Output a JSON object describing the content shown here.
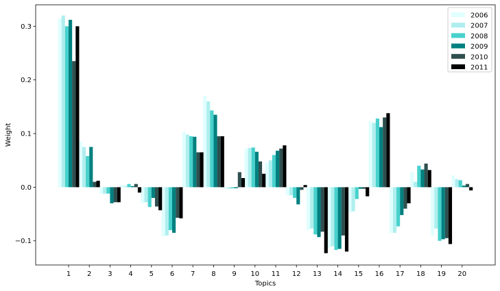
{
  "chart_data": {
    "type": "bar",
    "title": "",
    "xlabel": "Topics",
    "ylabel": "Weight",
    "categories": [
      "1",
      "2",
      "3",
      "4",
      "5",
      "6",
      "7",
      "8",
      "9",
      "10",
      "11",
      "12",
      "13",
      "14",
      "15",
      "16",
      "17",
      "18",
      "19",
      "20"
    ],
    "ylim": [
      -0.145,
      0.34
    ],
    "yticks": [
      -0.1,
      0.0,
      0.1,
      0.2,
      0.3
    ],
    "ytick_labels": [
      "−0.1",
      "0.0",
      "0.1",
      "0.2",
      "0.3"
    ],
    "grid": false,
    "legend": "top-right",
    "series": [
      {
        "name": "2006",
        "color": "#e0ffff",
        "values": [
          0.315,
          0.085,
          -0.012,
          0.004,
          -0.03,
          -0.092,
          0.103,
          0.17,
          -0.003,
          0.072,
          0.045,
          -0.015,
          -0.08,
          -0.113,
          -0.047,
          0.123,
          -0.085,
          0.028,
          -0.09,
          0.022
        ]
      },
      {
        "name": "2007",
        "color": "#afeeee",
        "values": [
          0.32,
          0.075,
          -0.012,
          0.002,
          -0.028,
          -0.09,
          0.098,
          0.16,
          -0.003,
          0.073,
          0.05,
          -0.015,
          -0.077,
          -0.11,
          -0.045,
          0.12,
          -0.085,
          0.01,
          -0.077,
          0.015
        ]
      },
      {
        "name": "2008",
        "color": "#48d1cc",
        "values": [
          0.3,
          0.058,
          -0.012,
          0.006,
          -0.037,
          -0.08,
          0.095,
          0.143,
          -0.002,
          0.074,
          0.06,
          -0.02,
          -0.088,
          -0.117,
          -0.022,
          0.128,
          -0.073,
          0.04,
          -0.1,
          0.013
        ]
      },
      {
        "name": "2009",
        "color": "#008080",
        "values": [
          0.312,
          0.075,
          -0.03,
          0.002,
          -0.02,
          -0.085,
          0.094,
          0.135,
          -0.002,
          0.066,
          0.068,
          -0.032,
          -0.093,
          -0.115,
          -0.003,
          0.112,
          -0.052,
          0.033,
          -0.097,
          0.003
        ]
      },
      {
        "name": "2010",
        "color": "#2f4f4f",
        "values": [
          0.235,
          0.01,
          -0.028,
          0.006,
          -0.036,
          -0.057,
          0.065,
          0.095,
          0.028,
          0.048,
          0.072,
          -0.005,
          -0.083,
          -0.09,
          -0.003,
          0.13,
          -0.04,
          0.044,
          -0.095,
          0.006
        ]
      },
      {
        "name": "2011",
        "color": "#000000",
        "values": [
          0.3,
          0.012,
          -0.028,
          -0.01,
          -0.043,
          -0.058,
          0.065,
          0.095,
          0.017,
          0.025,
          0.078,
          0.004,
          -0.123,
          -0.12,
          -0.017,
          0.138,
          -0.03,
          0.032,
          -0.106,
          -0.006
        ]
      }
    ]
  }
}
